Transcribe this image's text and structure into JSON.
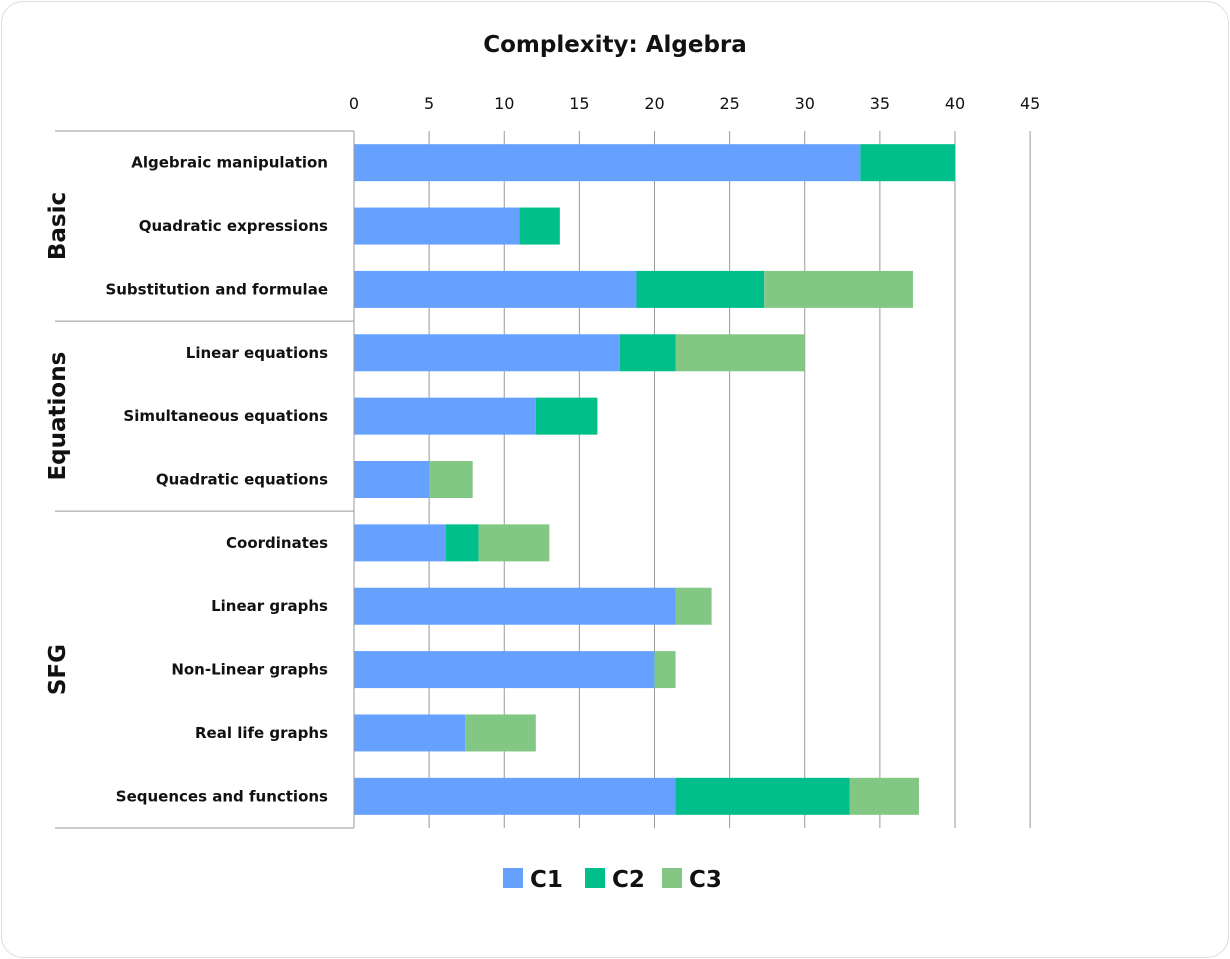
{
  "chart_data": {
    "type": "bar",
    "orientation": "horizontal",
    "stacked": true,
    "title": "Complexity: Algebra",
    "xlim": [
      0,
      45
    ],
    "x_ticks": [
      0,
      5,
      10,
      15,
      20,
      25,
      30,
      35,
      40,
      45
    ],
    "x_axis_position": "top",
    "grid": true,
    "legend_position": "bottom",
    "groups": [
      {
        "name": "Basic",
        "categories": [
          "Algebraic manipulation",
          "Quadratic expressions",
          "Substitution and formulae"
        ]
      },
      {
        "name": "Equations",
        "categories": [
          "Linear equations",
          "Simultaneous equations",
          "Quadratic equations"
        ]
      },
      {
        "name": "SFG",
        "categories": [
          "Coordinates",
          "Linear graphs",
          "Non-Linear graphs",
          "Real life graphs",
          "Sequences and functions"
        ]
      }
    ],
    "categories": [
      "Algebraic manipulation",
      "Quadratic expressions",
      "Substitution and formulae",
      "Linear equations",
      "Simultaneous equations",
      "Quadratic equations",
      "Coordinates",
      "Linear graphs",
      "Non-Linear graphs",
      "Real life graphs",
      "Sequences and functions"
    ],
    "series": [
      {
        "name": "C1",
        "color": "#66a1ff",
        "values": [
          33.7,
          11.0,
          18.8,
          17.7,
          12.1,
          5.0,
          6.1,
          21.4,
          20.0,
          7.4,
          21.4
        ]
      },
      {
        "name": "C2",
        "color": "#00bf8a",
        "values": [
          6.3,
          2.7,
          8.5,
          3.7,
          4.1,
          0,
          2.2,
          0,
          0,
          0,
          11.6
        ]
      },
      {
        "name": "C3",
        "color": "#82c784",
        "values": [
          0,
          0,
          9.9,
          8.6,
          0,
          2.9,
          4.7,
          2.4,
          1.4,
          4.7,
          4.6
        ]
      }
    ]
  }
}
